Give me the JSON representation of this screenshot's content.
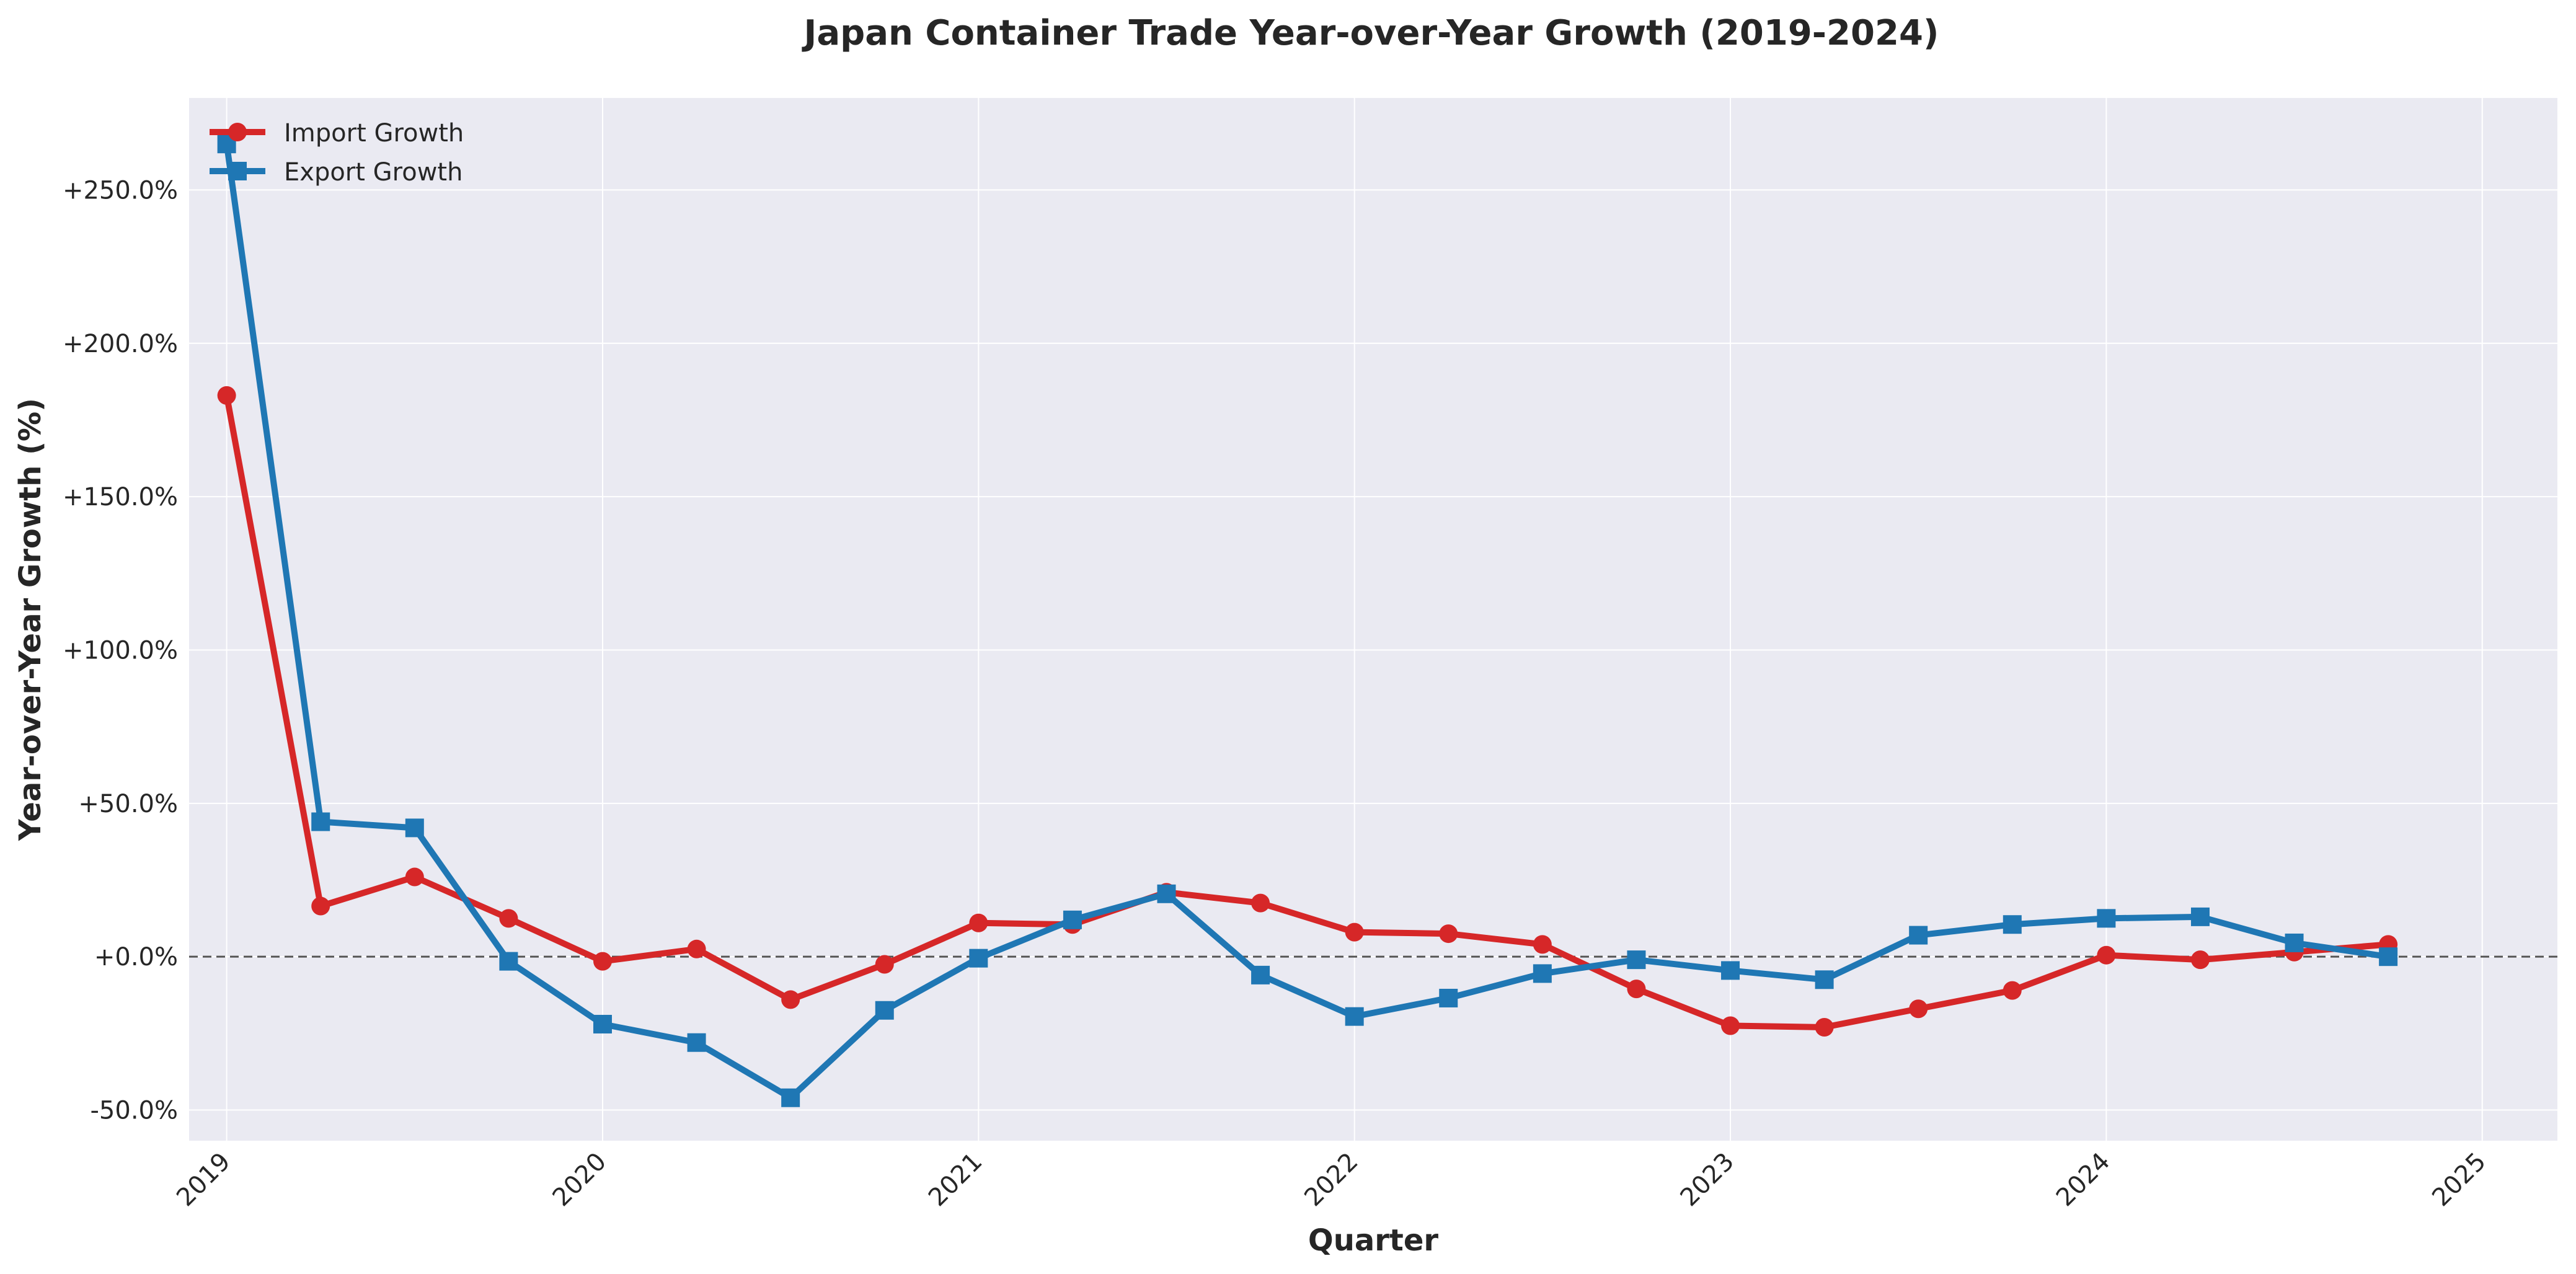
{
  "chart_data": {
    "type": "line",
    "title": "Japan Container Trade Year-over-Year Growth (2019-2024)",
    "xlabel": "Quarter",
    "ylabel": "Year-over-Year Growth (%)",
    "x_range": [
      2018.9,
      2025.2
    ],
    "ylim": [
      -60,
      280
    ],
    "x_ticks": [
      2019,
      2020,
      2021,
      2022,
      2023,
      2024,
      2025
    ],
    "x_tick_labels": [
      "2019",
      "2020",
      "2021",
      "2022",
      "2023",
      "2024",
      "2025"
    ],
    "y_ticks": [
      -50,
      0,
      50,
      100,
      150,
      200,
      250
    ],
    "y_tick_labels": [
      "-50.0%",
      "+0.0%",
      "+50.0%",
      "+100.0%",
      "+150.0%",
      "+200.0%",
      "+250.0%"
    ],
    "reference_line": 0,
    "grid": true,
    "legend_position": "top-left",
    "x": [
      2019.0,
      2019.25,
      2019.5,
      2019.75,
      2020.0,
      2020.25,
      2020.5,
      2020.75,
      2021.0,
      2021.25,
      2021.5,
      2021.75,
      2022.0,
      2022.25,
      2022.5,
      2022.75,
      2023.0,
      2023.25,
      2023.5,
      2023.75,
      2024.0,
      2024.25,
      2024.5,
      2024.75
    ],
    "series": [
      {
        "name": "Import Growth",
        "color": "#d62728",
        "marker": "circle",
        "values": [
          183,
          16.5,
          26,
          12.5,
          -1.5,
          2.5,
          -14,
          -2.5,
          11,
          10.5,
          21,
          17.5,
          8,
          7.5,
          4,
          -10.5,
          -22.5,
          -23,
          -17,
          -11,
          0.5,
          -1,
          1.5,
          4
        ]
      },
      {
        "name": "Export Growth",
        "color": "#1f77b4",
        "marker": "square",
        "values": [
          265,
          44,
          42,
          -1.5,
          -22,
          -28,
          -46,
          -17.5,
          -0.5,
          12,
          20.5,
          -6,
          -19.5,
          -13.5,
          -5.5,
          -1,
          -4.5,
          -7.5,
          7,
          10.5,
          12.5,
          13,
          4.5,
          0
        ]
      }
    ]
  }
}
